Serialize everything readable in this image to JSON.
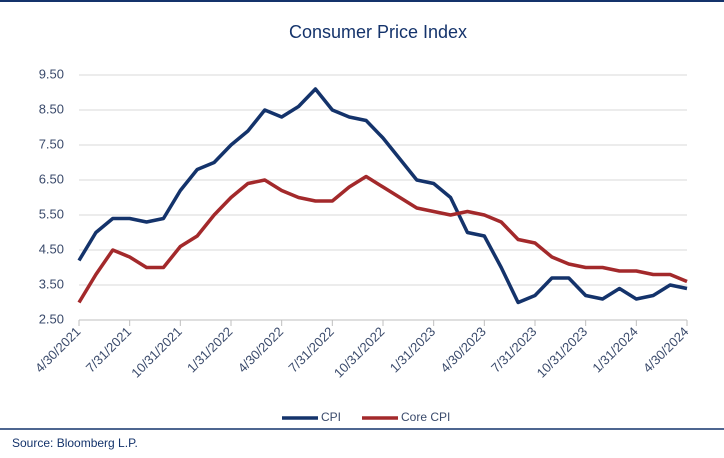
{
  "chart_data": {
    "type": "line",
    "title": "Consumer Price Index",
    "categories": [
      "4/30/2021",
      null,
      null,
      "7/31/2021",
      null,
      null,
      "10/31/2021",
      null,
      null,
      "1/31/2022",
      null,
      null,
      "4/30/2022",
      null,
      null,
      "7/31/2022",
      null,
      null,
      "10/31/2022",
      null,
      null,
      "1/31/2023",
      null,
      null,
      "4/30/2023",
      null,
      null,
      "7/31/2023",
      null,
      null,
      "10/31/2023",
      null,
      null,
      "1/31/2024",
      null,
      null,
      "4/30/2024"
    ],
    "series": [
      {
        "name": "CPI",
        "color": "#14336b",
        "values": [
          4.2,
          5.0,
          5.4,
          5.4,
          5.3,
          5.4,
          6.2,
          6.8,
          7.0,
          7.5,
          7.9,
          8.5,
          8.3,
          8.6,
          9.1,
          8.5,
          8.3,
          8.2,
          7.7,
          7.1,
          6.5,
          6.4,
          6.0,
          5.0,
          4.9,
          4.0,
          3.0,
          3.2,
          3.7,
          3.7,
          3.2,
          3.1,
          3.4,
          3.1,
          3.2,
          3.5,
          3.4
        ]
      },
      {
        "name": "Core CPI",
        "color": "#a3292b",
        "values": [
          3.0,
          3.8,
          4.5,
          4.3,
          4.0,
          4.0,
          4.6,
          4.9,
          5.5,
          6.0,
          6.4,
          6.5,
          6.2,
          6.0,
          5.9,
          5.9,
          6.3,
          6.6,
          6.3,
          6.0,
          5.7,
          5.6,
          5.5,
          5.6,
          5.5,
          5.3,
          4.8,
          4.7,
          4.3,
          4.1,
          4.0,
          4.0,
          3.9,
          3.9,
          3.8,
          3.8,
          3.6
        ]
      }
    ],
    "ylim": [
      2.5,
      9.5
    ],
    "yticks": [
      {
        "value": 2.5,
        "label": "2.50"
      },
      {
        "value": 3.5,
        "label": "3.50"
      },
      {
        "value": 4.5,
        "label": "4.50"
      },
      {
        "value": 5.5,
        "label": "5.50"
      },
      {
        "value": 6.5,
        "label": "6.50"
      },
      {
        "value": 7.5,
        "label": "7.50"
      },
      {
        "value": 8.5,
        "label": "8.50"
      },
      {
        "value": 9.5,
        "label": "9.50"
      }
    ],
    "grid": true,
    "legend": "bottom",
    "source": "Source: Bloomberg L.P."
  }
}
